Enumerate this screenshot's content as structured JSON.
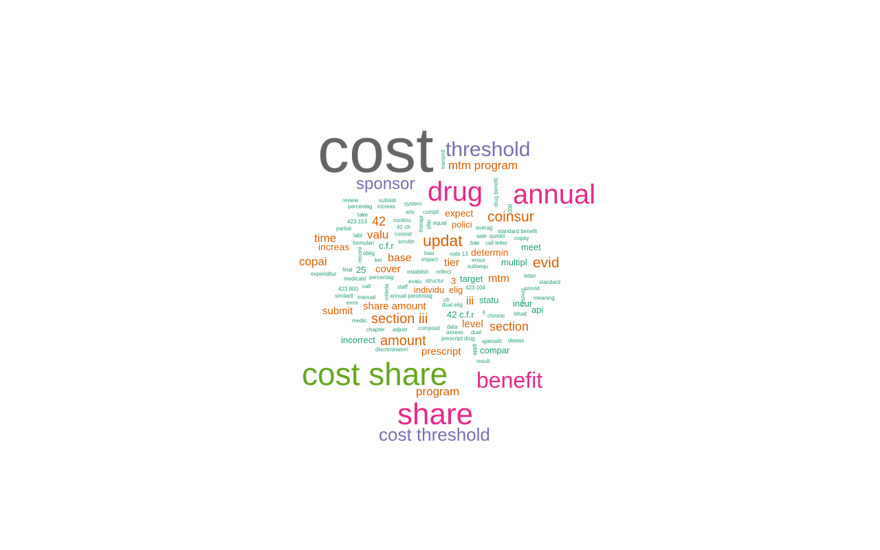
{
  "palette": {
    "gray": "#666666",
    "purple": "#7570b3",
    "magenta": "#e7298a",
    "green": "#66a61e",
    "orange": "#d95f02",
    "teal": "#1b9e77"
  },
  "words": [
    {
      "text": "cost",
      "color": "gray",
      "rank": 1
    },
    {
      "text": "threshold",
      "color": "purple",
      "rank": 3
    },
    {
      "text": "mtm program",
      "color": "orange",
      "rank": 5
    },
    {
      "text": "sponsor",
      "color": "purple",
      "rank": 3
    },
    {
      "text": "drug",
      "color": "magenta",
      "rank": 2
    },
    {
      "text": "annual",
      "color": "magenta",
      "rank": 2
    },
    {
      "text": "coinsur",
      "color": "orange",
      "rank": 4
    },
    {
      "text": "expect",
      "color": "orange",
      "rank": 5
    },
    {
      "text": "polici",
      "color": "orange",
      "rank": 6
    },
    {
      "text": "42",
      "color": "orange",
      "rank": 4
    },
    {
      "text": "valu",
      "color": "orange",
      "rank": 5
    },
    {
      "text": "updat",
      "color": "orange",
      "rank": 4
    },
    {
      "text": "time",
      "color": "orange",
      "rank": 5
    },
    {
      "text": "increas",
      "color": "orange",
      "rank": 6
    },
    {
      "text": "c.f.r",
      "color": "teal",
      "rank": 6
    },
    {
      "text": "meet",
      "color": "teal",
      "rank": 6
    },
    {
      "text": "copai",
      "color": "orange",
      "rank": 5
    },
    {
      "text": "base",
      "color": "orange",
      "rank": 5
    },
    {
      "text": "determin",
      "color": "orange",
      "rank": 5
    },
    {
      "text": "tier",
      "color": "orange",
      "rank": 5
    },
    {
      "text": "multipl",
      "color": "teal",
      "rank": 6
    },
    {
      "text": "evid",
      "color": "orange",
      "rank": 4
    },
    {
      "text": "cover",
      "color": "orange",
      "rank": 5
    },
    {
      "text": "25",
      "color": "teal",
      "rank": 6
    },
    {
      "text": "mtm",
      "color": "orange",
      "rank": 5
    },
    {
      "text": "target",
      "color": "teal",
      "rank": 6
    },
    {
      "text": "3",
      "color": "orange",
      "rank": 6
    },
    {
      "text": "individu",
      "color": "orange",
      "rank": 6
    },
    {
      "text": "elig",
      "color": "orange",
      "rank": 6
    },
    {
      "text": "iii",
      "color": "orange",
      "rank": 5
    },
    {
      "text": "statu",
      "color": "teal",
      "rank": 6
    },
    {
      "text": "incur",
      "color": "teal",
      "rank": 6
    },
    {
      "text": "api",
      "color": "teal",
      "rank": 6
    },
    {
      "text": "share amount",
      "color": "orange",
      "rank": 5
    },
    {
      "text": "submit",
      "color": "orange",
      "rank": 5
    },
    {
      "text": "section iii",
      "color": "orange",
      "rank": 4
    },
    {
      "text": "42 c.f.r",
      "color": "teal",
      "rank": 6
    },
    {
      "text": "level",
      "color": "orange",
      "rank": 5
    },
    {
      "text": "section",
      "color": "orange",
      "rank": 5
    },
    {
      "text": "incorrect",
      "color": "teal",
      "rank": 6
    },
    {
      "text": "amount",
      "color": "orange",
      "rank": 4
    },
    {
      "text": "prescript",
      "color": "orange",
      "rank": 5
    },
    {
      "text": "compar",
      "color": "teal",
      "rank": 6
    },
    {
      "text": "cost share",
      "color": "green",
      "rank": 1
    },
    {
      "text": "benefit",
      "color": "magenta",
      "rank": 2
    },
    {
      "text": "program",
      "color": "orange",
      "rank": 5
    },
    {
      "text": "share",
      "color": "magenta",
      "rank": 2
    },
    {
      "text": "cost threshold",
      "color": "purple",
      "rank": 3
    },
    {
      "text": "transmit",
      "color": "teal",
      "rank": 7,
      "vertical": true
    },
    {
      "text": "drug benefit",
      "color": "teal",
      "rank": 7,
      "vertical": true
    },
    {
      "text": "000",
      "color": "teal",
      "rank": 7,
      "vertical": true
    },
    {
      "text": "review",
      "color": "teal",
      "rank": 7
    },
    {
      "text": "subsidi",
      "color": "teal",
      "rank": 7
    },
    {
      "text": "system",
      "color": "teal",
      "rank": 7
    },
    {
      "text": "percentag",
      "color": "teal",
      "rank": 7
    },
    {
      "text": "increas",
      "color": "teal",
      "rank": 7
    },
    {
      "text": "take",
      "color": "teal",
      "rank": 7
    },
    {
      "text": "aris",
      "color": "teal",
      "rank": 7
    },
    {
      "text": "compli",
      "color": "teal",
      "rank": 7
    },
    {
      "text": "423.153",
      "color": "teal",
      "rank": 7
    },
    {
      "text": "continu",
      "color": "teal",
      "rank": 7
    },
    {
      "text": "42 cfr",
      "color": "teal",
      "rank": 7
    },
    {
      "text": "therapi",
      "color": "teal",
      "rank": 7,
      "vertical": true
    },
    {
      "text": "pbp",
      "color": "teal",
      "rank": 7,
      "vertical": true
    },
    {
      "text": "equal",
      "color": "teal",
      "rank": 7
    },
    {
      "text": "averag",
      "color": "teal",
      "rank": 7
    },
    {
      "text": "standard benefit",
      "color": "teal",
      "rank": 7
    },
    {
      "text": "partial",
      "color": "teal",
      "rank": 7
    },
    {
      "text": "tabl",
      "color": "teal",
      "rank": 7
    },
    {
      "text": "consist",
      "color": "teal",
      "rank": 7
    },
    {
      "text": "sale",
      "color": "teal",
      "rank": 7
    },
    {
      "text": "quickli",
      "color": "teal",
      "rank": 7
    },
    {
      "text": "copay",
      "color": "teal",
      "rank": 7
    },
    {
      "text": "formulari",
      "color": "teal",
      "rank": 7
    },
    {
      "text": "scrutin",
      "color": "teal",
      "rank": 7
    },
    {
      "text": "bae",
      "color": "teal",
      "rank": 7
    },
    {
      "text": "call letter",
      "color": "teal",
      "rank": 7
    },
    {
      "text": "oblig",
      "color": "teal",
      "rank": 7
    },
    {
      "text": "record",
      "color": "teal",
      "rank": 7,
      "vertical": true
    },
    {
      "text": "basi",
      "color": "teal",
      "rank": 7
    },
    {
      "text": "note 13",
      "color": "teal",
      "rank": 7
    },
    {
      "text": "kei",
      "color": "teal",
      "rank": 7
    },
    {
      "text": "impact",
      "color": "teal",
      "rank": 7
    },
    {
      "text": "ensur",
      "color": "teal",
      "rank": 7
    },
    {
      "text": "subsequ",
      "color": "teal",
      "rank": 7
    },
    {
      "text": "final",
      "color": "teal",
      "rank": 7
    },
    {
      "text": "establish",
      "color": "teal",
      "rank": 7
    },
    {
      "text": "reflect",
      "color": "teal",
      "rank": 7
    },
    {
      "text": "expenditur",
      "color": "teal",
      "rank": 7
    },
    {
      "text": "medicaid",
      "color": "teal",
      "rank": 7
    },
    {
      "text": "percentag",
      "color": "teal",
      "rank": 7
    },
    {
      "text": "evalu",
      "color": "teal",
      "rank": 7
    },
    {
      "text": "structur",
      "color": "teal",
      "rank": 7
    },
    {
      "text": "letter",
      "color": "teal",
      "rank": 7
    },
    {
      "text": "standard",
      "color": "teal",
      "rank": 7
    },
    {
      "text": "call",
      "color": "teal",
      "rank": 7
    },
    {
      "text": "staff",
      "color": "teal",
      "rank": 7
    },
    {
      "text": "423.104",
      "color": "teal",
      "rank": 7
    },
    {
      "text": "provid",
      "color": "teal",
      "rank": 7
    },
    {
      "text": "423.800",
      "color": "teal",
      "rank": 7
    },
    {
      "text": "criteria",
      "color": "teal",
      "rank": 7,
      "vertical": true
    },
    {
      "text": "similarli",
      "color": "teal",
      "rank": 7
    },
    {
      "text": "manual",
      "color": "teal",
      "rank": 7
    },
    {
      "text": "annual percentag",
      "color": "teal",
      "rank": 7
    },
    {
      "text": "cfr",
      "color": "teal",
      "rank": 7
    },
    {
      "text": "resourc",
      "color": "teal",
      "rank": 7,
      "vertical": true
    },
    {
      "text": "meaning",
      "color": "teal",
      "rank": 7
    },
    {
      "text": "exce",
      "color": "teal",
      "rank": 7
    },
    {
      "text": "dual elig",
      "color": "teal",
      "rank": 7
    },
    {
      "text": "li",
      "color": "teal",
      "rank": 7
    },
    {
      "text": "chronic",
      "color": "teal",
      "rank": 7
    },
    {
      "text": "situat",
      "color": "teal",
      "rank": 7
    },
    {
      "text": "medic",
      "color": "teal",
      "rank": 7
    },
    {
      "text": "data",
      "color": "teal",
      "rank": 7
    },
    {
      "text": "chapter",
      "color": "teal",
      "rank": 7
    },
    {
      "text": "adjust",
      "color": "teal",
      "rank": 7
    },
    {
      "text": "composit",
      "color": "teal",
      "rank": 7
    },
    {
      "text": "assess",
      "color": "teal",
      "rank": 7
    },
    {
      "text": "dual",
      "color": "teal",
      "rank": 7
    },
    {
      "text": "prescript drug",
      "color": "teal",
      "rank": 7
    },
    {
      "text": "specialti",
      "color": "teal",
      "rank": 7
    },
    {
      "text": "diseas",
      "color": "teal",
      "rank": 7
    },
    {
      "text": "discriminatori",
      "color": "teal",
      "rank": 7
    },
    {
      "text": "appli",
      "color": "teal",
      "rank": 7,
      "vertical": true
    },
    {
      "text": "result",
      "color": "teal",
      "rank": 7
    }
  ]
}
